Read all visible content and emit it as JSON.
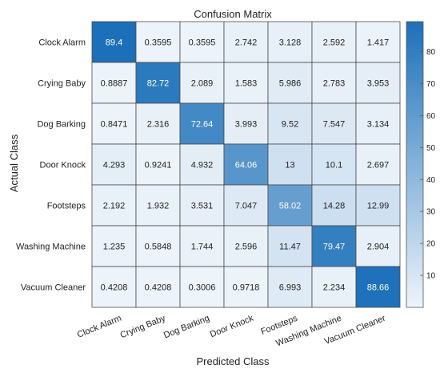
{
  "chart_data": {
    "type": "heatmap",
    "title": "Confusion Matrix",
    "xlabel": "Predicted Class",
    "ylabel": "Actual Class",
    "x_categories": [
      "Clock Alarm",
      "Crying Baby",
      "Dog Barking",
      "Door Knock",
      "Footsteps",
      "Washing Machine",
      "Vacuum Cleaner"
    ],
    "y_categories": [
      "Clock Alarm",
      "Crying Baby",
      "Dog Barking",
      "Door Knock",
      "Footsteps",
      "Washing Machine",
      "Vacuum Cleaner"
    ],
    "values": [
      [
        "89.4",
        "0.3595",
        "0.3595",
        "2.742",
        "3.128",
        "2.592",
        "1.417"
      ],
      [
        "0.8887",
        "82.72",
        "2.089",
        "1.583",
        "5.986",
        "2.783",
        "3.953"
      ],
      [
        "0.8471",
        "2.316",
        "72.64",
        "3.993",
        "9.52",
        "7.547",
        "3.134"
      ],
      [
        "4.293",
        "0.9241",
        "4.932",
        "64.06",
        "13",
        "10.1",
        "2.697"
      ],
      [
        "2.192",
        "1.932",
        "3.531",
        "7.047",
        "58.02",
        "14.28",
        "12.99"
      ],
      [
        "1.235",
        "0.5848",
        "1.744",
        "2.596",
        "11.47",
        "79.47",
        "2.904"
      ],
      [
        "0.4208",
        "0.4208",
        "0.3006",
        "0.9718",
        "6.993",
        "2.234",
        "88.66"
      ]
    ],
    "colorbar": {
      "ticks": [
        "10",
        "20",
        "30",
        "40",
        "50",
        "60",
        "70",
        "80"
      ],
      "range": [
        0,
        89.4
      ],
      "low_color": "#eef4fa",
      "high_color": "#1c70b9"
    }
  }
}
